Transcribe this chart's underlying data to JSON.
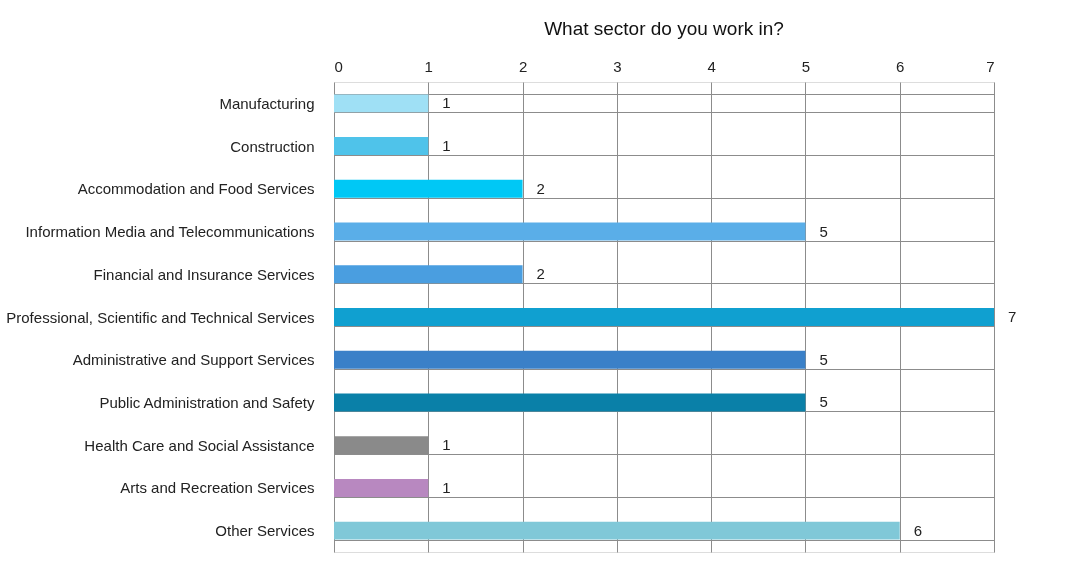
{
  "chart_data": {
    "type": "bar",
    "orientation": "horizontal",
    "title": "What sector do you work in?",
    "categories": [
      "Manufacturing",
      "Construction",
      "Accommodation and Food Services",
      "Information Media and Telecommunications",
      "Financial and Insurance Services",
      "Professional, Scientific and Technical Services",
      "Administrative and Support Services",
      "Public Administration and Safety",
      "Health Care and Social Assistance",
      "Arts and Recreation Services",
      "Other Services"
    ],
    "values": [
      1,
      1,
      2,
      5,
      2,
      7,
      5,
      5,
      1,
      1,
      6
    ],
    "colors": [
      "#9fe0f5",
      "#4fc3ea",
      "#00c8f5",
      "#5aaee8",
      "#4a9ee0",
      "#10a0d0",
      "#3a80c8",
      "#0a80a8",
      "#8a8a8a",
      "#b888c0",
      "#80c8d8"
    ],
    "xlim": [
      0,
      7
    ],
    "xticks": [
      0,
      1,
      2,
      3,
      4,
      5,
      6,
      7
    ],
    "grid": true,
    "data_labels": true
  }
}
